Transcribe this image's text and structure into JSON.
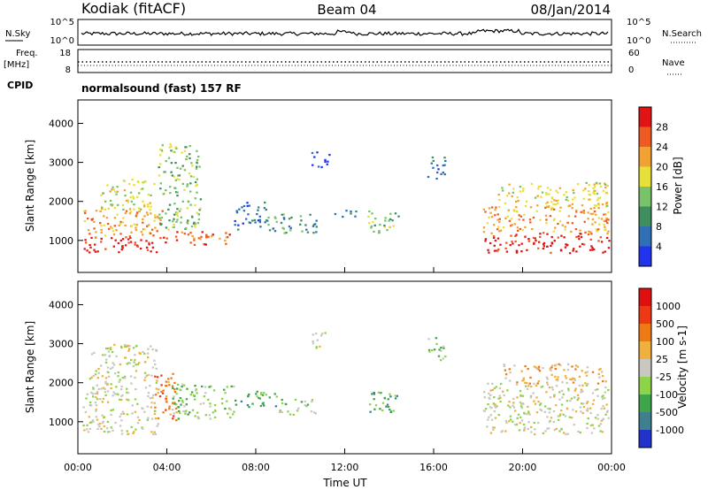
{
  "header": {
    "station": "Kodiak (fitACF)",
    "beam": "Beam 04",
    "date": "08/Jan/2014"
  },
  "noise_panel": {
    "left_label": "N.Sky",
    "right_label": "N.Search",
    "left_top": "10^5",
    "left_bottom": "10^0",
    "right_top": "10^5",
    "right_bottom": "10^0"
  },
  "freq_panel": {
    "left_label_1": "Freq.",
    "left_label_2": "[MHz]",
    "right_label": "Nave",
    "left_top": "18",
    "left_bottom": "8",
    "right_top": "60",
    "right_bottom": "0"
  },
  "cpid": {
    "label": "CPID",
    "text": "normalsound (fast) 157 RF"
  },
  "chart_data": [
    {
      "type": "heatmap",
      "title": "Power",
      "ylabel": "Slant Range [km]",
      "xlabel": "Time UT",
      "x_ticks": [
        "00:00",
        "04:00",
        "08:00",
        "12:00",
        "16:00",
        "20:00",
        "00:00"
      ],
      "y_ticks": [
        "1000",
        "2000",
        "3000",
        "4000"
      ],
      "ylim": [
        180,
        4600
      ],
      "colorbar": {
        "label": "Power [dB]",
        "ticks": [
          "4",
          "8",
          "12",
          "16",
          "20",
          "24",
          "28"
        ],
        "colors": [
          "#2233ee",
          "#2f6fb6",
          "#3f8f5e",
          "#78c26a",
          "#e8e03a",
          "#f2a233",
          "#ee5a22",
          "#e01414"
        ]
      },
      "regions": [
        {
          "t": [
            0.2,
            3.8
          ],
          "r": [
            700,
            1100
          ],
          "level": 7
        },
        {
          "t": [
            0.2,
            3.8
          ],
          "r": [
            1100,
            1800
          ],
          "level": 5
        },
        {
          "t": [
            1.0,
            3.5
          ],
          "r": [
            1800,
            2600
          ],
          "level": 4
        },
        {
          "t": [
            3.8,
            6.8
          ],
          "r": [
            900,
            1250
          ],
          "level": 6
        },
        {
          "t": [
            3.6,
            5.5
          ],
          "r": [
            1300,
            3500
          ],
          "level": 3
        },
        {
          "t": [
            7.0,
            8.5
          ],
          "r": [
            1300,
            2000
          ],
          "level": 1
        },
        {
          "t": [
            8.5,
            10.8
          ],
          "r": [
            1200,
            1700
          ],
          "level": 2
        },
        {
          "t": [
            10.5,
            11.3
          ],
          "r": [
            2900,
            3300
          ],
          "level": 0
        },
        {
          "t": [
            11.5,
            12.5
          ],
          "r": [
            1600,
            1800
          ],
          "level": 1
        },
        {
          "t": [
            13.0,
            14.4
          ],
          "r": [
            1200,
            1800
          ],
          "level": 3
        },
        {
          "t": [
            15.7,
            16.5
          ],
          "r": [
            2600,
            3200
          ],
          "level": 1
        },
        {
          "t": [
            18.2,
            23.9
          ],
          "r": [
            700,
            1200
          ],
          "level": 7
        },
        {
          "t": [
            18.2,
            23.9
          ],
          "r": [
            1200,
            1900
          ],
          "level": 5
        },
        {
          "t": [
            18.8,
            23.9
          ],
          "r": [
            1900,
            2500
          ],
          "level": 4
        }
      ]
    },
    {
      "type": "heatmap",
      "title": "Velocity",
      "ylabel": "Slant Range [km]",
      "xlabel": "Time UT",
      "x_ticks": [
        "00:00",
        "04:00",
        "08:00",
        "12:00",
        "16:00",
        "20:00",
        "00:00"
      ],
      "y_ticks": [
        "1000",
        "2000",
        "3000",
        "4000"
      ],
      "ylim": [
        180,
        4600
      ],
      "colorbar": {
        "label": "Velocity [m s-1]",
        "ticks": [
          "1000",
          "500",
          "100",
          "25",
          "-25",
          "-100",
          "-500",
          "-1000"
        ],
        "colors": [
          "#2233cc",
          "#3f7f8f",
          "#3fa54a",
          "#8ed44a",
          "#c8c8c0",
          "#f0b040",
          "#ee7a14",
          "#ee3a14",
          "#e01010"
        ]
      },
      "regions": [
        {
          "t": [
            0.2,
            3.6
          ],
          "r": [
            700,
            1800
          ],
          "level": 4
        },
        {
          "t": [
            0.5,
            3.5
          ],
          "r": [
            1800,
            3000
          ],
          "level": 4
        },
        {
          "t": [
            3.4,
            4.4
          ],
          "r": [
            1000,
            2300
          ],
          "level": 6
        },
        {
          "t": [
            4.2,
            7.0
          ],
          "r": [
            1100,
            2000
          ],
          "level": 3
        },
        {
          "t": [
            7.0,
            9.0
          ],
          "r": [
            1400,
            1800
          ],
          "level": 2
        },
        {
          "t": [
            9.0,
            10.8
          ],
          "r": [
            1200,
            1600
          ],
          "level": 3
        },
        {
          "t": [
            10.5,
            11.3
          ],
          "r": [
            2900,
            3300
          ],
          "level": 4
        },
        {
          "t": [
            13.0,
            14.4
          ],
          "r": [
            1200,
            1800
          ],
          "level": 2
        },
        {
          "t": [
            15.7,
            16.5
          ],
          "r": [
            2600,
            3200
          ],
          "level": 3
        },
        {
          "t": [
            18.2,
            23.9
          ],
          "r": [
            700,
            2000
          ],
          "level": 4
        },
        {
          "t": [
            19.0,
            23.9
          ],
          "r": [
            2000,
            2500
          ],
          "level": 5
        }
      ]
    }
  ]
}
